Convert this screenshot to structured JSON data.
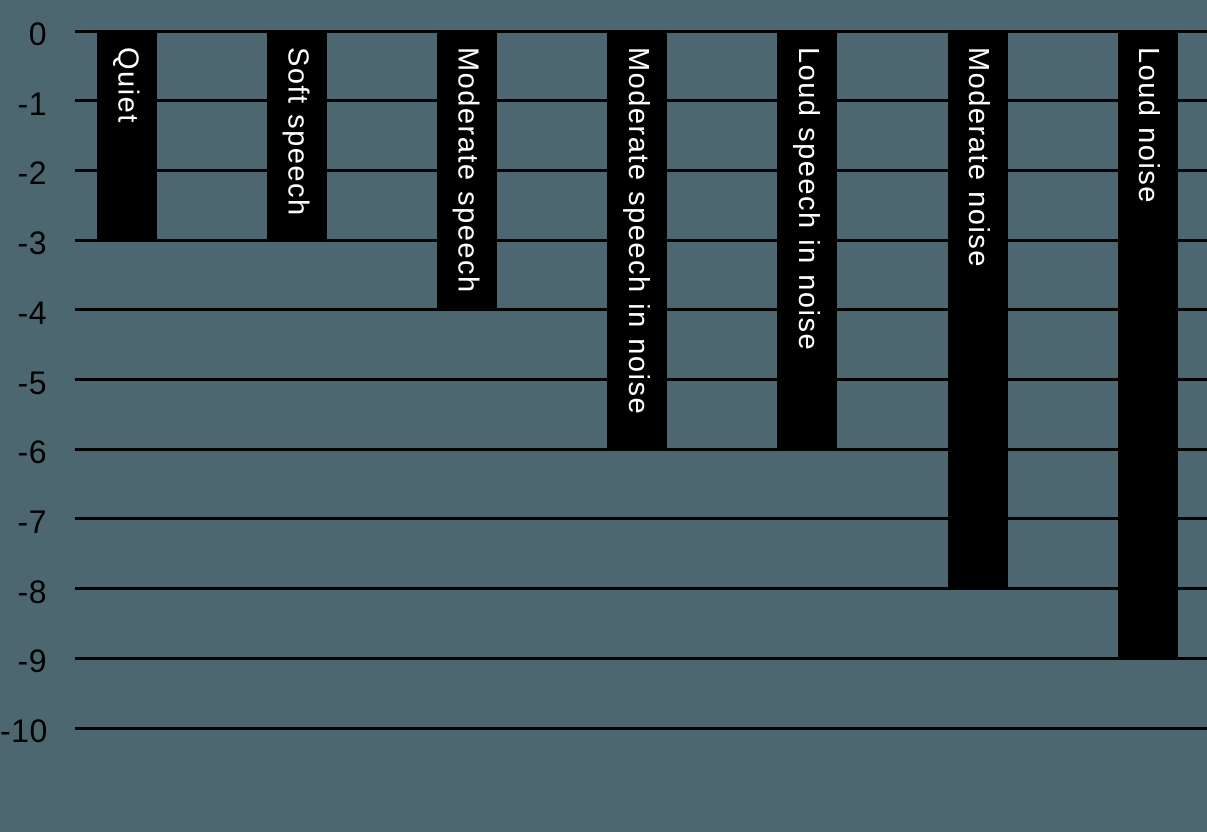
{
  "chart_data": {
    "type": "bar",
    "orientation": "vertical-downward",
    "categories": [
      "Quiet",
      "Soft speech",
      "Moderate speech",
      "Moderate speech in noise",
      "Loud speech in noise",
      "Moderate noise",
      "Loud noise"
    ],
    "values": [
      -3,
      -3,
      -4,
      -6,
      -6,
      -8,
      -9
    ],
    "bar_labels_inside_bars": true,
    "xlabel": "",
    "ylabel": "",
    "ylim": [
      0,
      -10
    ],
    "yticks": [
      0,
      -1,
      -2,
      -3,
      -4,
      -5,
      -6,
      -7,
      -8,
      -9,
      -10
    ],
    "ytick_labels": [
      "0",
      "-1",
      "-2",
      "-3",
      "-4",
      "-5",
      "-6",
      "-7",
      "-8",
      "-9",
      "-10"
    ],
    "grid": true,
    "legend": false,
    "background_color": "#4D6770",
    "bar_color": "#000000",
    "gridline_color": "#000000",
    "tick_label_color": "#000000",
    "label_color": "#FFFFFF"
  }
}
